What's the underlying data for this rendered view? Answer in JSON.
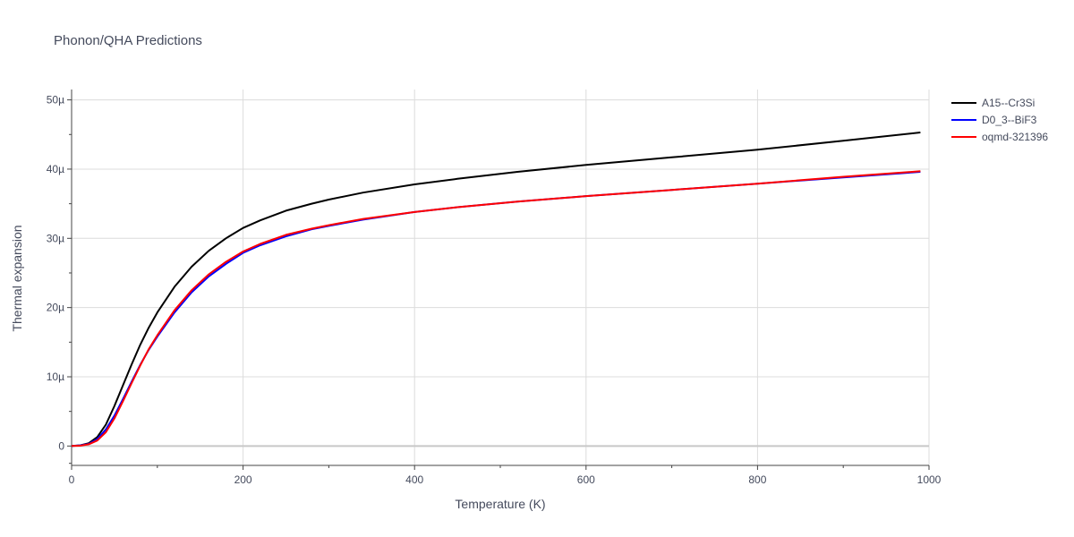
{
  "chart_data": {
    "type": "line",
    "title": "Phonon/QHA Predictions",
    "xlabel": "Temperature (K)",
    "ylabel": "Thermal expansion",
    "xlim": [
      0,
      1000
    ],
    "ylim": [
      -2.8,
      51.5
    ],
    "grid": true,
    "legend_position": "top-right",
    "x_ticks": [
      0,
      200,
      400,
      600,
      800,
      1000
    ],
    "x_tick_labels": [
      "0",
      "200",
      "400",
      "600",
      "800",
      "1000"
    ],
    "y_ticks": [
      0,
      10,
      20,
      30,
      40,
      50
    ],
    "y_tick_labels": [
      "0",
      "10µ",
      "20µ",
      "30µ",
      "40µ",
      "50µ"
    ],
    "series": [
      {
        "name": "A15--Cr3Si",
        "color": "#000000",
        "x": [
          0,
          10,
          20,
          30,
          40,
          50,
          60,
          70,
          80,
          90,
          100,
          120,
          140,
          160,
          180,
          200,
          220,
          250,
          280,
          300,
          340,
          400,
          450,
          520,
          600,
          700,
          800,
          900,
          990
        ],
        "y": [
          0,
          0.1,
          0.4,
          1.3,
          3.1,
          5.8,
          8.8,
          11.8,
          14.6,
          17.1,
          19.3,
          23.0,
          25.9,
          28.2,
          30.0,
          31.5,
          32.6,
          34.0,
          35.0,
          35.6,
          36.6,
          37.8,
          38.6,
          39.6,
          40.6,
          41.7,
          42.8,
          44.1,
          45.3
        ]
      },
      {
        "name": "D0_3--BiF3",
        "color": "#0000ff",
        "x": [
          0,
          10,
          20,
          30,
          40,
          50,
          60,
          70,
          80,
          90,
          100,
          120,
          140,
          160,
          180,
          200,
          220,
          250,
          280,
          300,
          340,
          400,
          450,
          520,
          600,
          700,
          800,
          900,
          990
        ],
        "y": [
          0,
          0.1,
          0.3,
          1.0,
          2.4,
          4.4,
          6.8,
          9.3,
          11.7,
          13.9,
          15.8,
          19.3,
          22.2,
          24.5,
          26.3,
          27.9,
          29.0,
          30.3,
          31.3,
          31.8,
          32.7,
          33.8,
          34.5,
          35.3,
          36.1,
          37.0,
          37.9,
          38.8,
          39.6
        ]
      },
      {
        "name": "oqmd-321396",
        "color": "#ff0000",
        "x": [
          0,
          10,
          20,
          30,
          40,
          50,
          60,
          70,
          80,
          90,
          100,
          120,
          140,
          160,
          180,
          200,
          220,
          250,
          280,
          300,
          340,
          400,
          450,
          520,
          600,
          700,
          800,
          900,
          990
        ],
        "y": [
          0,
          0.05,
          0.25,
          0.8,
          2.0,
          4.0,
          6.5,
          9.1,
          11.6,
          14.0,
          16.0,
          19.6,
          22.5,
          24.8,
          26.6,
          28.1,
          29.2,
          30.5,
          31.4,
          31.9,
          32.8,
          33.8,
          34.5,
          35.3,
          36.1,
          37.0,
          37.9,
          38.9,
          39.7
        ]
      }
    ]
  }
}
